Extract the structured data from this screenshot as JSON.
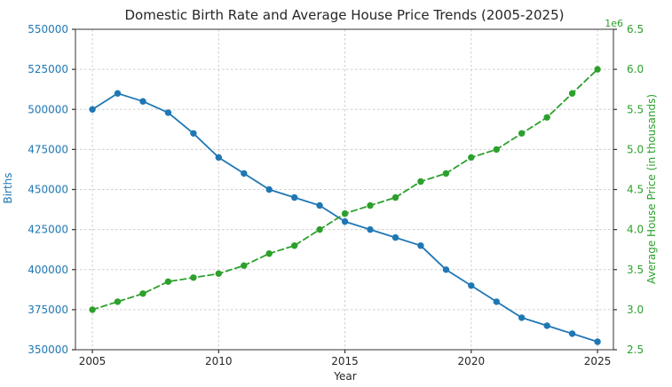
{
  "figure": {
    "title": "Domestic Birth Rate and Average House Price Trends (2005-2025)",
    "xlabel": "Year",
    "ylabel_left": "Births",
    "ylabel_right": "Average House Price (in thousands)",
    "offset_text": "1e6",
    "colors": {
      "births": "#1f77b4",
      "house_price": "#2ca02c",
      "grid": "#cdcdcd",
      "spine": "#333333",
      "tick": "#333333",
      "title_text": "#262626",
      "x_tick_text": "#262626",
      "background": "#ffffff"
    }
  },
  "chart_data": {
    "type": "line",
    "title": "Domestic Birth Rate and Average House Price Trends (2005-2025)",
    "xlabel": "Year",
    "grid": true,
    "legend": null,
    "x": [
      2005,
      2006,
      2007,
      2008,
      2009,
      2010,
      2011,
      2012,
      2013,
      2014,
      2015,
      2016,
      2017,
      2018,
      2019,
      2020,
      2021,
      2022,
      2023,
      2024,
      2025
    ],
    "series": [
      {
        "name": "Births",
        "axis": "left",
        "color": "#1f77b4",
        "line_style": "solid",
        "marker": "circle",
        "values": [
          500000,
          510000,
          505000,
          498000,
          485000,
          470000,
          460000,
          450000,
          445000,
          440000,
          430000,
          425000,
          420000,
          415000,
          400000,
          390000,
          380000,
          370000,
          365000,
          360000,
          355000
        ]
      },
      {
        "name": "Average House Price (in thousands)",
        "axis": "right",
        "color": "#2ca02c",
        "line_style": "dashed",
        "marker": "circle",
        "values": [
          3000000,
          3100000,
          3200000,
          3350000,
          3400000,
          3450000,
          3550000,
          3700000,
          3800000,
          4000000,
          4200000,
          4300000,
          4400000,
          4600000,
          4700000,
          4900000,
          5000000,
          5200000,
          5400000,
          5700000,
          6000000
        ]
      }
    ],
    "axes": {
      "x": {
        "label": "Year",
        "ticks": [
          2005,
          2010,
          2015,
          2020,
          2025
        ],
        "lim": [
          2004.33,
          2025.63
        ]
      },
      "y_left": {
        "label": "Births",
        "ticks": [
          350000,
          375000,
          400000,
          425000,
          450000,
          475000,
          500000,
          525000,
          550000
        ],
        "lim": [
          350000,
          550000
        ]
      },
      "y_right": {
        "label": "Average House Price (in thousands)",
        "ticks": [
          2.5,
          3.0,
          3.5,
          4.0,
          4.5,
          5.0,
          5.5,
          6.0,
          6.5
        ],
        "scale_factor": 1000000,
        "offset_text": "1e6",
        "lim": [
          2500000,
          6500000
        ]
      }
    }
  }
}
